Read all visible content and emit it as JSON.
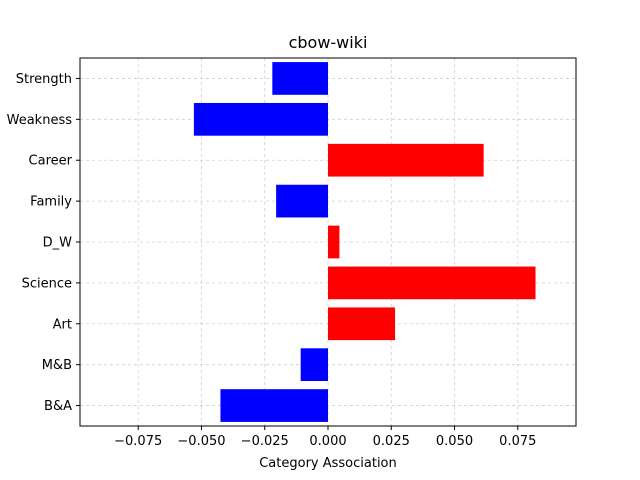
{
  "chart_data": {
    "type": "bar",
    "orientation": "horizontal",
    "title": "cbow-wiki",
    "xlabel": "Category Association",
    "ylabel": "",
    "categories": [
      "Strength",
      "Weakness",
      "Career",
      "Family",
      "D_W",
      "Science",
      "Art",
      "M&B",
      "B&A"
    ],
    "values": [
      -0.022,
      -0.053,
      0.0615,
      -0.0205,
      0.0045,
      0.082,
      0.0265,
      -0.0108,
      -0.0425
    ],
    "xlim": [
      -0.098,
      0.098
    ],
    "xticks": [
      -0.075,
      -0.05,
      -0.025,
      0.0,
      0.025,
      0.05,
      0.075
    ],
    "xtick_labels": [
      "−0.075",
      "−0.050",
      "−0.025",
      "0.000",
      "0.025",
      "0.050",
      "0.075"
    ],
    "grid": true,
    "colors": {
      "positive": "#ff0000",
      "negative": "#0000ff"
    }
  }
}
